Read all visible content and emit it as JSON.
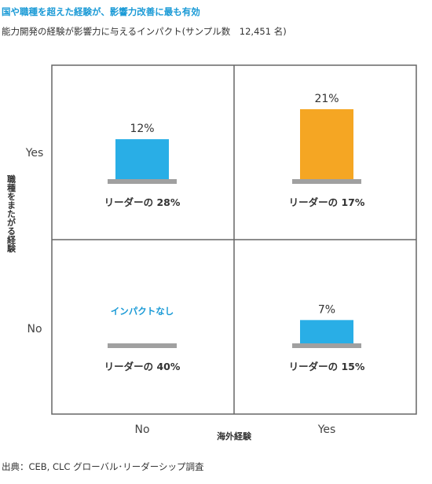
{
  "headline": "国や職種を超えた経験が、影響力改善に最も有効",
  "subtitle": "能力開発の経験が影響力に与えるインパクト(サンプル数　12,451 名)",
  "source": "出典：CEB, CLC グローバル･リーダーシップ調査",
  "colors": {
    "accent": "#1a9ad6",
    "blue": "#29aee6",
    "orange": "#f5a623",
    "base": "#a0a0a0",
    "grid": "#666666"
  },
  "chart_data": {
    "type": "bar",
    "xlabel": "海外経験",
    "ylabel": "職種をまたがる経験",
    "x_categories": [
      "No",
      "Yes"
    ],
    "y_categories": [
      "No",
      "Yes"
    ],
    "ylim": [
      0,
      25
    ],
    "cells": [
      {
        "x": "No",
        "y": "Yes",
        "value": 12,
        "value_label": "12%",
        "base_label": "リーダーの 28%",
        "color": "#29aee6"
      },
      {
        "x": "Yes",
        "y": "Yes",
        "value": 21,
        "value_label": "21%",
        "base_label": "リーダーの 17%",
        "color": "#f5a623"
      },
      {
        "x": "No",
        "y": "No",
        "value": 0,
        "value_label": "インパクトなし",
        "base_label": "リーダーの 40%",
        "color": "#29aee6"
      },
      {
        "x": "Yes",
        "y": "No",
        "value": 7,
        "value_label": "7%",
        "base_label": "リーダーの 15%",
        "color": "#29aee6"
      }
    ]
  }
}
